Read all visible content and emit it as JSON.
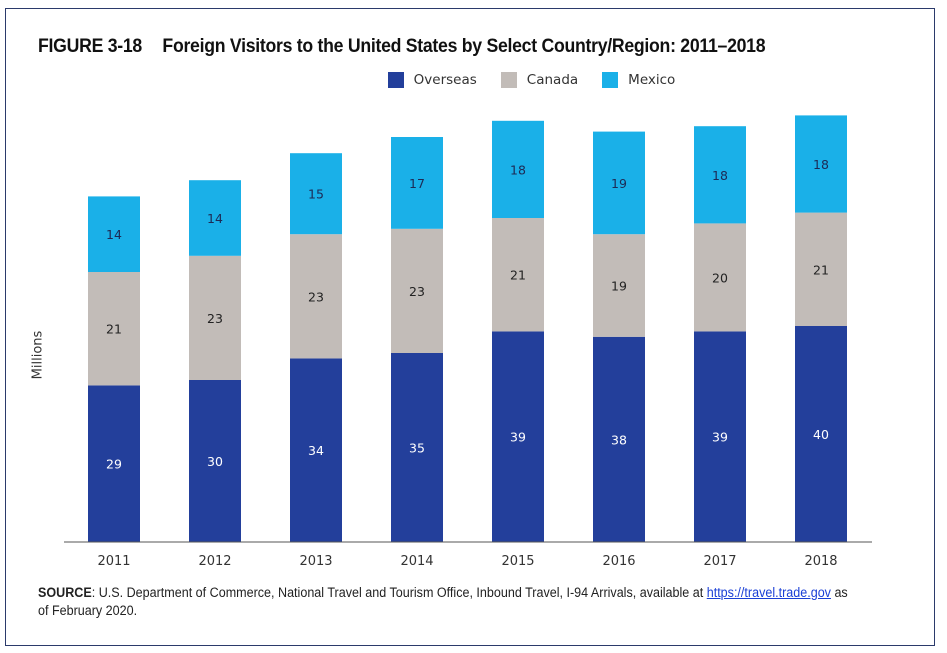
{
  "figure": {
    "number": "FIGURE 3-18",
    "title": "Foreign Visitors to the United States by Select Country/Region: 2011–2018"
  },
  "source": {
    "label": "SOURCE",
    "text_before_link": ": U.S. Department of Commerce, National Travel and Tourism Office, Inbound Travel, I-94 Arrivals, available at ",
    "link_text": "https://travel.trade.gov",
    "text_after_link": " as of February 2020."
  },
  "colors": {
    "overseas": "#233f9b",
    "canada": "#c2bcb8",
    "mexico": "#1ab0e8",
    "axis": "#555555",
    "border": "#2b3a6b"
  },
  "chart_data": {
    "type": "bar",
    "stacked": true,
    "title": "Foreign Visitors to the United States by Select Country/Region: 2011–2018",
    "xlabel": "",
    "ylabel": "Millions",
    "ylim": [
      0,
      80
    ],
    "grid": false,
    "legend_position": "top-center",
    "categories": [
      "2011",
      "2012",
      "2013",
      "2014",
      "2015",
      "2016",
      "2017",
      "2018"
    ],
    "series": [
      {
        "name": "Overseas",
        "color": "#233f9b",
        "label_color": "#ffffff",
        "values": [
          29,
          30,
          34,
          35,
          39,
          38,
          39,
          40
        ]
      },
      {
        "name": "Canada",
        "color": "#c2bcb8",
        "label_color": "#222222",
        "values": [
          21,
          23,
          23,
          23,
          21,
          19,
          20,
          21
        ]
      },
      {
        "name": "Mexico",
        "color": "#1ab0e8",
        "label_color": "#1d2a55",
        "values": [
          14,
          14,
          15,
          17,
          18,
          19,
          18,
          18
        ]
      }
    ]
  }
}
